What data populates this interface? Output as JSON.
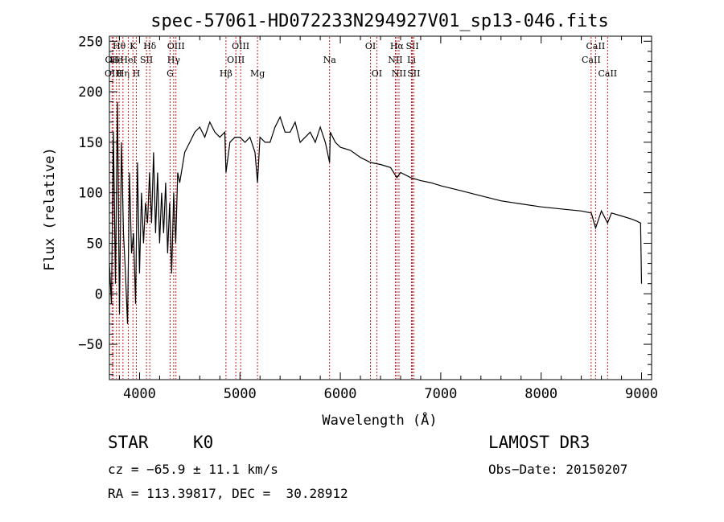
{
  "chart_data": {
    "type": "line",
    "title": "spec-57061-HD072233N294927V01_sp13-046.fits",
    "xlabel": "Wavelength (Å)",
    "ylabel": "Flux (relative)",
    "xlim": [
      3700,
      9100
    ],
    "ylim": [
      -85,
      255
    ],
    "xticks": [
      4000,
      5000,
      6000,
      7000,
      8000,
      9000
    ],
    "yticks": [
      -50,
      0,
      50,
      100,
      150,
      200,
      250
    ],
    "series": [
      {
        "name": "flux",
        "x": [
          3700,
          3720,
          3740,
          3760,
          3780,
          3800,
          3820,
          3840,
          3860,
          3880,
          3900,
          3920,
          3940,
          3960,
          3980,
          4000,
          4020,
          4040,
          4060,
          4080,
          4100,
          4120,
          4140,
          4160,
          4180,
          4200,
          4220,
          4240,
          4260,
          4280,
          4300,
          4320,
          4340,
          4360,
          4380,
          4400,
          4450,
          4500,
          4550,
          4600,
          4650,
          4700,
          4750,
          4800,
          4850,
          4861,
          4900,
          4950,
          5000,
          5050,
          5100,
          5150,
          5175,
          5200,
          5250,
          5300,
          5350,
          5400,
          5450,
          5500,
          5550,
          5600,
          5650,
          5700,
          5750,
          5800,
          5850,
          5893,
          5900,
          5950,
          6000,
          6100,
          6200,
          6300,
          6400,
          6500,
          6563,
          6600,
          6700,
          6800,
          6900,
          7000,
          7200,
          7400,
          7600,
          7800,
          8000,
          8200,
          8400,
          8500,
          8542,
          8600,
          8662,
          8700,
          8800,
          8900,
          8950,
          8990,
          9000
        ],
        "y": [
          30,
          -10,
          160,
          10,
          190,
          -20,
          150,
          60,
          20,
          -30,
          120,
          40,
          60,
          -10,
          130,
          20,
          100,
          50,
          90,
          70,
          120,
          70,
          140,
          60,
          120,
          50,
          100,
          60,
          110,
          40,
          90,
          20,
          100,
          50,
          120,
          110,
          140,
          150,
          160,
          165,
          155,
          170,
          160,
          155,
          160,
          120,
          150,
          155,
          155,
          150,
          155,
          140,
          110,
          155,
          150,
          150,
          165,
          175,
          160,
          160,
          170,
          150,
          155,
          160,
          150,
          165,
          150,
          130,
          160,
          150,
          145,
          142,
          135,
          130,
          128,
          125,
          115,
          120,
          115,
          112,
          110,
          107,
          102,
          97,
          92,
          89,
          86,
          84,
          82,
          80,
          65,
          82,
          70,
          80,
          77,
          74,
          72,
          70,
          10
        ]
      }
    ],
    "lines": [
      {
        "name": "Hθ",
        "x": 3797,
        "row": 1
      },
      {
        "name": "OII",
        "x": 3727,
        "row": 2
      },
      {
        "name": "OIII",
        "x": 3740,
        "row": 3
      },
      {
        "name": "He",
        "x": 3770,
        "row": 2
      },
      {
        "name": "Hη",
        "x": 3835,
        "row": 3
      },
      {
        "name": "K",
        "x": 3934,
        "row": 1
      },
      {
        "name": "HeI",
        "x": 3889,
        "row": 2
      },
      {
        "name": "SII",
        "x": 4069,
        "row": 2
      },
      {
        "name": "H",
        "x": 3969,
        "row": 3
      },
      {
        "name": "Hδ",
        "x": 4102,
        "row": 1
      },
      {
        "name": "OIII",
        "x": 4363,
        "row": 1
      },
      {
        "name": "Hγ",
        "x": 4340,
        "row": 2
      },
      {
        "name": "G",
        "x": 4305,
        "row": 3
      },
      {
        "name": "OIII",
        "x": 5007,
        "row": 1
      },
      {
        "name": "OIII",
        "x": 4959,
        "row": 2
      },
      {
        "name": "Hβ",
        "x": 4861,
        "row": 3
      },
      {
        "name": "Mg",
        "x": 5175,
        "row": 3
      },
      {
        "name": "Na",
        "x": 5893,
        "row": 2
      },
      {
        "name": "OI",
        "x": 6300,
        "row": 1
      },
      {
        "name": "OI",
        "x": 6363,
        "row": 3
      },
      {
        "name": "Hα",
        "x": 6563,
        "row": 1
      },
      {
        "name": "SII",
        "x": 6717,
        "row": 1
      },
      {
        "name": "NII",
        "x": 6548,
        "row": 2
      },
      {
        "name": "Li",
        "x": 6708,
        "row": 2
      },
      {
        "name": "NII",
        "x": 6584,
        "row": 3
      },
      {
        "name": "SII",
        "x": 6731,
        "row": 3
      },
      {
        "name": "CaII",
        "x": 8542,
        "row": 1
      },
      {
        "name": "CaII",
        "x": 8498,
        "row": 2
      },
      {
        "name": "CaII",
        "x": 8662,
        "row": 3
      }
    ]
  },
  "info": {
    "class": "STAR",
    "subclass": "K0",
    "survey": "LAMOST DR3",
    "cz": "cz = −65.9 ± 11.1 km/s",
    "obs_date": "Obs−Date: 20150207",
    "radec": "RA = 113.39817, DEC =  30.28912"
  }
}
